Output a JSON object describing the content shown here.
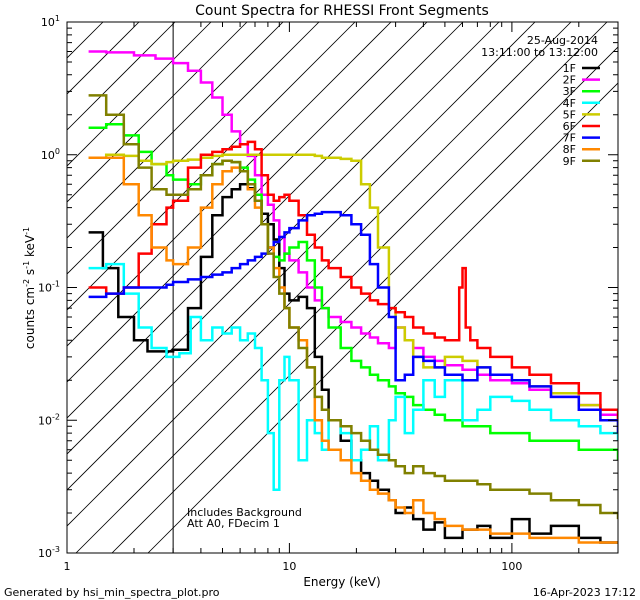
{
  "chart_data": {
    "type": "line",
    "title": "Count Spectra for RHESSI Front Segments",
    "xlabel": "Energy (keV)",
    "ylabel_parts": [
      "counts cm",
      "-2",
      " s",
      "-1",
      " keV",
      "-1"
    ],
    "x_scale": "log",
    "y_scale": "log",
    "xlim": [
      1,
      300
    ],
    "ylim": [
      0.001,
      10
    ],
    "x_ticks": [
      {
        "value": 1,
        "label": "1"
      },
      {
        "value": 10,
        "label": "10"
      },
      {
        "value": 100,
        "label": "100"
      }
    ],
    "y_ticks": [
      {
        "value": 0.001,
        "base": "10",
        "exp": "-3"
      },
      {
        "value": 0.01,
        "base": "10",
        "exp": "-2"
      },
      {
        "value": 0.1,
        "base": "10",
        "exp": "-1"
      },
      {
        "value": 1,
        "base": "10",
        "exp": "0"
      },
      {
        "value": 10,
        "base": "10",
        "exp": "1"
      }
    ],
    "info": [
      "25-Aug-2014",
      "13:11:00 to 13:12:00"
    ],
    "annotations": [
      "Includes Background",
      "Att A0, FDecim 1"
    ],
    "hatch_region": [
      1,
      3
    ],
    "series": [
      {
        "name": "1F",
        "color": "#000000",
        "x": [
          1.25,
          1.45,
          1.7,
          2.0,
          2.3,
          2.6,
          3.0,
          3.5,
          4.0,
          4.5,
          5.0,
          5.5,
          6.0,
          6.5,
          7.0,
          7.5,
          8.0,
          8.5,
          9.0,
          9.5,
          10,
          11,
          12,
          13,
          14,
          15,
          17,
          19,
          21,
          23,
          25,
          28,
          30,
          33,
          36,
          40,
          45,
          50,
          60,
          70,
          80,
          100,
          120,
          150,
          200,
          250,
          300
        ],
        "y": [
          0.26,
          0.14,
          0.06,
          0.04,
          0.033,
          0.033,
          0.034,
          0.07,
          0.17,
          0.35,
          0.48,
          0.55,
          0.6,
          0.56,
          0.45,
          0.36,
          0.3,
          0.23,
          0.14,
          0.09,
          0.08,
          0.085,
          0.07,
          0.03,
          0.017,
          0.01,
          0.007,
          0.005,
          0.004,
          0.0035,
          0.003,
          0.0025,
          0.002,
          0.0022,
          0.0018,
          0.0015,
          0.0017,
          0.0013,
          0.0015,
          0.0016,
          0.0013,
          0.0018,
          0.0014,
          0.0016,
          0.0013,
          0.0012,
          0.0012
        ]
      },
      {
        "name": "2F",
        "color": "#ff00ff",
        "x": [
          1.25,
          1.5,
          2.0,
          2.5,
          3.0,
          3.5,
          4.0,
          4.5,
          5.0,
          5.5,
          6.0,
          6.5,
          7.0,
          7.5,
          8.0,
          8.5,
          9.0,
          9.5,
          10,
          11,
          12,
          13,
          14,
          15,
          17,
          19,
          21,
          23,
          25,
          28,
          30,
          33,
          36,
          40,
          45,
          50,
          60,
          70,
          80,
          100,
          120,
          150,
          200,
          250,
          300
        ],
        "y": [
          6.0,
          5.9,
          5.6,
          5.3,
          4.9,
          4.3,
          3.5,
          2.7,
          2.0,
          1.5,
          1.2,
          0.98,
          0.7,
          0.5,
          0.42,
          0.32,
          0.24,
          0.18,
          0.16,
          0.13,
          0.1,
          0.08,
          0.07,
          0.06,
          0.055,
          0.05,
          0.045,
          0.042,
          0.038,
          0.035,
          0.05,
          0.04,
          0.035,
          0.03,
          0.028,
          0.026,
          0.024,
          0.022,
          0.02,
          0.019,
          0.017,
          0.015,
          0.013,
          0.011,
          0.01
        ]
      },
      {
        "name": "3F",
        "color": "#00ff00",
        "x": [
          1.25,
          1.5,
          1.8,
          2.1,
          2.4,
          2.8,
          3.0,
          3.5,
          4.0,
          4.5,
          5.0,
          5.5,
          6.0,
          6.5,
          7.0,
          7.5,
          8.0,
          8.5,
          9.0,
          9.5,
          10,
          11,
          12,
          13,
          14,
          15,
          17,
          19,
          21,
          23,
          25,
          28,
          30,
          33,
          36,
          40,
          45,
          50,
          60,
          70,
          80,
          100,
          120,
          150,
          200,
          250,
          300
        ],
        "y": [
          1.6,
          1.7,
          1.4,
          1.05,
          0.85,
          0.7,
          0.65,
          0.6,
          0.7,
          0.85,
          0.9,
          0.88,
          0.8,
          0.65,
          0.5,
          0.3,
          0.2,
          0.17,
          0.16,
          0.18,
          0.2,
          0.22,
          0.16,
          0.1,
          0.07,
          0.05,
          0.035,
          0.028,
          0.025,
          0.022,
          0.02,
          0.018,
          0.016,
          0.015,
          0.013,
          0.012,
          0.011,
          0.01,
          0.009,
          0.009,
          0.008,
          0.008,
          0.007,
          0.007,
          0.006,
          0.006,
          0.005
        ]
      },
      {
        "name": "4F",
        "color": "#00ffff",
        "x": [
          1.25,
          1.5,
          1.8,
          2.1,
          2.4,
          2.8,
          3.2,
          3.6,
          4.0,
          4.5,
          5.0,
          5.5,
          6.0,
          6.5,
          7.0,
          7.5,
          8.0,
          8.5,
          9.0,
          9.5,
          10,
          11,
          12,
          13,
          14,
          15,
          17,
          19,
          21,
          23,
          25,
          28,
          30,
          33,
          36,
          40,
          45,
          50,
          60,
          70,
          80,
          100,
          120,
          150,
          200,
          250,
          300
        ],
        "y": [
          0.14,
          0.15,
          0.09,
          0.05,
          0.035,
          0.03,
          0.032,
          0.06,
          0.04,
          0.05,
          0.045,
          0.05,
          0.04,
          0.045,
          0.035,
          0.02,
          0.008,
          0.003,
          0.02,
          0.03,
          0.02,
          0.005,
          0.01,
          0.008,
          0.006,
          0.01,
          0.008,
          0.005,
          0.006,
          0.009,
          0.005,
          0.01,
          0.015,
          0.008,
          0.012,
          0.02,
          0.015,
          0.02,
          0.01,
          0.012,
          0.015,
          0.014,
          0.012,
          0.01,
          0.009,
          0.008,
          0.007
        ]
      },
      {
        "name": "5F",
        "color": "#cccc00",
        "x": [
          1.25,
          1.5,
          1.8,
          2.1,
          2.4,
          2.8,
          3.0,
          3.5,
          4.0,
          4.5,
          5.0,
          5.5,
          6.0,
          6.5,
          7.0,
          7.5,
          8.0,
          8.5,
          9.0,
          9.5,
          10,
          11,
          12,
          13,
          14,
          15,
          17,
          19,
          21,
          23,
          25,
          28,
          30,
          33,
          36,
          40,
          45,
          50,
          60,
          70,
          80,
          100,
          120,
          150,
          200,
          250,
          300
        ],
        "y": [
          0.95,
          1.0,
          0.98,
          0.9,
          0.85,
          0.88,
          0.9,
          0.92,
          0.95,
          0.98,
          1.0,
          1.0,
          1.0,
          1.0,
          1.0,
          1.0,
          1.0,
          1.0,
          1.0,
          1.0,
          1.0,
          1.0,
          1.0,
          0.98,
          0.95,
          0.95,
          0.93,
          0.9,
          0.6,
          0.4,
          0.2,
          0.07,
          0.05,
          0.04,
          0.03,
          0.025,
          0.025,
          0.03,
          0.028,
          0.025,
          0.022,
          0.02,
          0.018,
          0.016,
          0.013,
          0.01,
          0.008
        ]
      },
      {
        "name": "6F",
        "color": "#ff0000",
        "x": [
          1.25,
          1.5,
          1.8,
          2.1,
          2.4,
          2.8,
          3.0,
          3.5,
          4.0,
          4.5,
          5.0,
          5.5,
          6.0,
          6.5,
          7.0,
          7.5,
          8.0,
          8.5,
          9.0,
          9.5,
          10,
          11,
          12,
          13,
          14,
          15,
          17,
          19,
          21,
          23,
          25,
          28,
          30,
          33,
          36,
          40,
          45,
          50,
          55,
          58,
          60,
          62,
          65,
          70,
          80,
          100,
          120,
          150,
          200,
          250,
          300
        ],
        "y": [
          0.1,
          0.09,
          0.1,
          0.18,
          0.3,
          0.4,
          0.45,
          0.8,
          1.0,
          1.05,
          1.1,
          1.15,
          1.2,
          1.25,
          1.1,
          0.7,
          0.5,
          0.45,
          0.48,
          0.5,
          0.45,
          0.35,
          0.25,
          0.2,
          0.16,
          0.14,
          0.12,
          0.1,
          0.09,
          0.08,
          0.075,
          0.07,
          0.065,
          0.06,
          0.05,
          0.045,
          0.042,
          0.04,
          0.04,
          0.1,
          0.14,
          0.05,
          0.04,
          0.035,
          0.03,
          0.025,
          0.022,
          0.019,
          0.016,
          0.012,
          0.01
        ]
      },
      {
        "name": "7F",
        "color": "#0000ff",
        "x": [
          1.25,
          1.5,
          1.8,
          2.1,
          2.4,
          2.8,
          3.0,
          3.5,
          4.0,
          4.5,
          5.0,
          5.5,
          6.0,
          6.5,
          7.0,
          7.5,
          8.0,
          8.5,
          9.0,
          9.5,
          10,
          11,
          12,
          13,
          14,
          15,
          17,
          19,
          21,
          23,
          25,
          28,
          30,
          33,
          36,
          40,
          45,
          50,
          60,
          70,
          80,
          100,
          120,
          150,
          200,
          250,
          300
        ],
        "y": [
          0.085,
          0.09,
          0.1,
          0.1,
          0.1,
          0.105,
          0.11,
          0.115,
          0.12,
          0.125,
          0.13,
          0.14,
          0.15,
          0.16,
          0.17,
          0.18,
          0.2,
          0.22,
          0.24,
          0.26,
          0.28,
          0.32,
          0.35,
          0.36,
          0.37,
          0.37,
          0.35,
          0.3,
          0.25,
          0.15,
          0.1,
          0.06,
          0.02,
          0.022,
          0.03,
          0.028,
          0.025,
          0.022,
          0.02,
          0.025,
          0.022,
          0.02,
          0.018,
          0.015,
          0.012,
          0.01,
          0.008
        ]
      },
      {
        "name": "8F",
        "color": "#ff8800",
        "x": [
          1.25,
          1.5,
          1.8,
          2.1,
          2.4,
          2.8,
          3.0,
          3.5,
          4.0,
          4.5,
          5.0,
          5.5,
          6.0,
          6.5,
          7.0,
          7.5,
          8.0,
          8.5,
          9.0,
          9.5,
          10,
          11,
          12,
          13,
          14,
          15,
          17,
          19,
          21,
          23,
          25,
          28,
          30,
          33,
          36,
          40,
          45,
          50,
          60,
          70,
          80,
          100,
          120,
          150,
          200,
          250,
          300
        ],
        "y": [
          0.95,
          0.95,
          0.6,
          0.35,
          0.2,
          0.16,
          0.15,
          0.2,
          0.4,
          0.6,
          0.75,
          0.8,
          0.75,
          0.55,
          0.4,
          0.3,
          0.2,
          0.14,
          0.1,
          0.07,
          0.05,
          0.04,
          0.025,
          0.01,
          0.007,
          0.006,
          0.005,
          0.004,
          0.0035,
          0.003,
          0.0028,
          0.0025,
          0.0022,
          0.002,
          0.0025,
          0.002,
          0.0018,
          0.0016,
          0.0015,
          0.0015,
          0.0014,
          0.0014,
          0.0013,
          0.0013,
          0.0012,
          0.0012,
          0.0012
        ]
      },
      {
        "name": "9F",
        "color": "#808000",
        "x": [
          1.25,
          1.5,
          1.8,
          2.1,
          2.4,
          2.8,
          3.0,
          3.5,
          4.0,
          4.5,
          5.0,
          5.5,
          6.0,
          6.5,
          7.0,
          7.5,
          8.0,
          8.5,
          9.0,
          9.5,
          10,
          11,
          12,
          13,
          14,
          15,
          17,
          19,
          21,
          23,
          25,
          28,
          30,
          33,
          36,
          40,
          45,
          50,
          60,
          70,
          80,
          100,
          120,
          150,
          200,
          250,
          300
        ],
        "y": [
          2.8,
          2.0,
          1.2,
          0.8,
          0.55,
          0.5,
          0.5,
          0.55,
          0.7,
          0.85,
          0.9,
          0.88,
          0.75,
          0.6,
          0.45,
          0.3,
          0.18,
          0.12,
          0.09,
          0.07,
          0.05,
          0.035,
          0.025,
          0.015,
          0.012,
          0.01,
          0.009,
          0.008,
          0.007,
          0.006,
          0.0055,
          0.005,
          0.0045,
          0.004,
          0.0045,
          0.004,
          0.0038,
          0.0035,
          0.0035,
          0.0033,
          0.003,
          0.003,
          0.0028,
          0.0025,
          0.0023,
          0.002,
          0.0018
        ]
      }
    ]
  },
  "footer": {
    "left": "Generated by hsi_min_spectra_plot.pro",
    "right": "16-Apr-2023 17:12"
  }
}
